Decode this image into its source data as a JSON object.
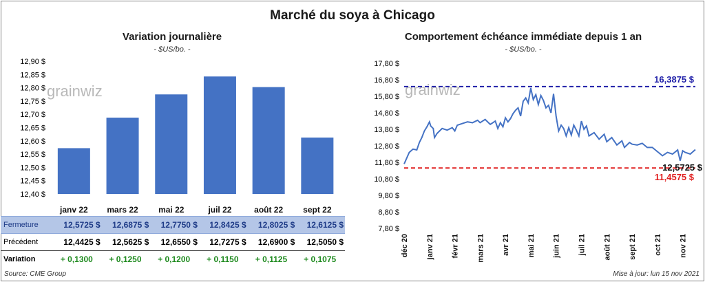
{
  "title": "Marché du soya à Chicago",
  "left_panel": {
    "title": "Variation  journalière",
    "unit": "- $US/bo. -",
    "watermark": "grainwiz"
  },
  "right_panel": {
    "title": "Comportement  échéance immédiate depuis 1 an",
    "unit": "- $US/bo. -",
    "watermark": "grainwiz",
    "annotations": {
      "high": "16,3875 $",
      "current": "12,5725 $",
      "low": "11,4575 $"
    }
  },
  "table": {
    "headers": [
      "janv 22",
      "mars 22",
      "mai 22",
      "juil 22",
      "août 22",
      "sept 22"
    ],
    "rows": [
      {
        "label": "Fermeture",
        "values": [
          "12,5725  $",
          "12,6875  $",
          "12,7750  $",
          "12,8425  $",
          "12,8025  $",
          "12,6125  $"
        ]
      },
      {
        "label": "Précédent",
        "values": [
          "12,4425  $",
          "12,5625  $",
          "12,6550  $",
          "12,7275  $",
          "12,6900  $",
          "12,5050  $"
        ]
      },
      {
        "label": "Variation",
        "values": [
          "+ 0,1300",
          "+ 0,1250",
          "+ 0,1200",
          "+ 0,1150",
          "+ 0,1125",
          "+ 0,1075"
        ]
      }
    ]
  },
  "footer": {
    "source": "Source: CME Group",
    "updated": "Mise à jour: lun 15 nov 2021"
  },
  "colors": {
    "bar": "#4472c4",
    "line": "#4472c4",
    "high_line": "#1f1fa8",
    "low_line": "#e02020",
    "variation_positive": "#1e8a1e",
    "header_row": "#b4c6e7"
  },
  "chart_data": [
    {
      "type": "bar",
      "title": "Variation  journalière",
      "ylabel": "- $US/bo. -",
      "categories": [
        "janv 22",
        "mars 22",
        "mai 22",
        "juil 22",
        "août 22",
        "sept 22"
      ],
      "values": [
        12.5725,
        12.6875,
        12.775,
        12.8425,
        12.8025,
        12.6125
      ],
      "ylim": [
        12.4,
        12.9
      ],
      "yticks": [
        "12,40 $",
        "12,45 $",
        "12,50 $",
        "12,55 $",
        "12,60 $",
        "12,65 $",
        "12,70 $",
        "12,75 $",
        "12,80 $",
        "12,85 $",
        "12,90 $"
      ],
      "grid": false
    },
    {
      "type": "line",
      "title": "Comportement  échéance immédiate depuis 1 an",
      "ylabel": "- $US/bo. -",
      "ylim": [
        7.8,
        17.8
      ],
      "yticks": [
        "7,80 $",
        "8,80 $",
        "9,80 $",
        "10,80 $",
        "11,80 $",
        "12,80 $",
        "13,80 $",
        "14,80 $",
        "15,80 $",
        "16,80 $",
        "17,80 $"
      ],
      "x_range": [
        0,
        11.5
      ],
      "xticks": [
        {
          "label": "déc 20",
          "x": 0
        },
        {
          "label": "janv 21",
          "x": 1
        },
        {
          "label": "févr 21",
          "x": 2
        },
        {
          "label": "mars 21",
          "x": 3
        },
        {
          "label": "avr 21",
          "x": 4
        },
        {
          "label": "mai 21",
          "x": 5
        },
        {
          "label": "juin 21",
          "x": 6
        },
        {
          "label": "juil 21",
          "x": 7
        },
        {
          "label": "août 21",
          "x": 8
        },
        {
          "label": "sept 21",
          "x": 9
        },
        {
          "label": "oct 21",
          "x": 10
        },
        {
          "label": "nov 21",
          "x": 11
        }
      ],
      "series": [
        {
          "x": [
            0,
            0.1,
            0.2,
            0.35,
            0.5,
            0.6,
            0.7,
            0.8,
            0.9,
            1.0,
            1.05,
            1.15,
            1.2,
            1.3,
            1.5,
            1.7,
            1.9,
            2.0,
            2.1,
            2.3,
            2.5,
            2.7,
            2.9,
            3.0,
            3.2,
            3.4,
            3.6,
            3.7,
            3.8,
            3.9,
            4.0,
            4.1,
            4.2,
            4.3,
            4.4,
            4.5,
            4.6,
            4.7,
            4.8,
            4.9,
            5.0,
            5.1,
            5.2,
            5.3,
            5.4,
            5.5,
            5.6,
            5.7,
            5.8,
            5.9,
            6.0,
            6.1,
            6.2,
            6.3,
            6.4,
            6.5,
            6.6,
            6.7,
            6.8,
            6.9,
            7.0,
            7.1,
            7.2,
            7.3,
            7.5,
            7.7,
            7.9,
            8.0,
            8.2,
            8.4,
            8.6,
            8.7,
            8.9,
            9.0,
            9.2,
            9.4,
            9.6,
            9.8,
            10.0,
            10.2,
            10.4,
            10.6,
            10.8,
            10.9,
            11.0,
            11.1,
            11.3,
            11.5
          ],
          "y": [
            11.7,
            12.05,
            12.4,
            12.6,
            12.55,
            13.0,
            13.3,
            13.7,
            13.95,
            14.25,
            14.0,
            13.85,
            13.3,
            13.55,
            13.85,
            13.75,
            13.9,
            13.7,
            14.05,
            14.15,
            14.25,
            14.2,
            14.35,
            14.2,
            14.4,
            14.1,
            14.3,
            13.85,
            14.2,
            13.95,
            14.5,
            14.25,
            14.45,
            14.75,
            14.95,
            15.1,
            14.6,
            15.5,
            15.7,
            15.4,
            16.3,
            15.6,
            15.9,
            15.3,
            15.85,
            15.55,
            15.1,
            15.25,
            14.8,
            15.95,
            14.6,
            13.7,
            14.05,
            13.85,
            13.4,
            13.9,
            13.45,
            14.05,
            13.75,
            13.4,
            14.3,
            13.8,
            14.0,
            13.4,
            13.6,
            13.2,
            13.5,
            13.05,
            13.3,
            12.85,
            13.1,
            12.7,
            13.0,
            12.9,
            12.85,
            12.95,
            12.7,
            12.7,
            12.45,
            12.2,
            12.4,
            12.3,
            12.55,
            11.9,
            12.5,
            12.4,
            12.3,
            12.57
          ]
        }
      ],
      "reference_lines": [
        {
          "label": "16,3875 $",
          "y": 16.3875
        },
        {
          "label": "11,4575 $",
          "y": 11.4575
        }
      ],
      "last_value_label": "12,5725 $"
    }
  ]
}
